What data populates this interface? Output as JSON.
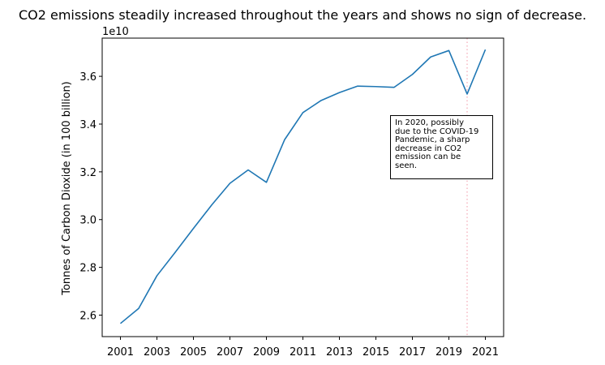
{
  "chart_data": {
    "type": "line",
    "title": "CO2 emissions steadily increased throughout the years and shows no sign of decrease.",
    "xlabel": "",
    "ylabel": "Tonnes of Carbon Dioxide (in 100 billion)",
    "y_offset_label": "1e10",
    "x": [
      2001,
      2002,
      2003,
      2004,
      2005,
      2006,
      2007,
      2008,
      2009,
      2010,
      2011,
      2012,
      2013,
      2014,
      2015,
      2016,
      2017,
      2018,
      2019,
      2020,
      2021
    ],
    "series": [
      {
        "name": "",
        "color": "#1f77b4",
        "values": [
          25.65,
          26.28,
          27.65,
          28.63,
          29.63,
          30.61,
          31.52,
          32.08,
          31.56,
          33.35,
          34.48,
          34.99,
          35.32,
          35.59,
          35.57,
          35.54,
          36.08,
          36.81,
          37.08,
          35.26,
          37.12
        ]
      }
    ],
    "x_ticks": [
      2001,
      2003,
      2005,
      2007,
      2009,
      2011,
      2013,
      2015,
      2017,
      2019,
      2021
    ],
    "y_ticks": [
      26,
      28,
      30,
      32,
      34,
      36
    ],
    "y_tick_labels": [
      "2.6",
      "2.8",
      "3.0",
      "3.2",
      "3.4",
      "3.6"
    ],
    "xlim": [
      2000.0,
      2022.0
    ],
    "ylim": [
      25.1,
      37.6
    ],
    "grid": false,
    "vline": {
      "x": 2020,
      "color": "#f4a7b3",
      "style": "dotted"
    },
    "annotation": {
      "text": "In 2020, possibly\ndue to the COVID-19\nPandemic, a sharp\ndecrease in CO2\nemission can be\nseen."
    }
  }
}
